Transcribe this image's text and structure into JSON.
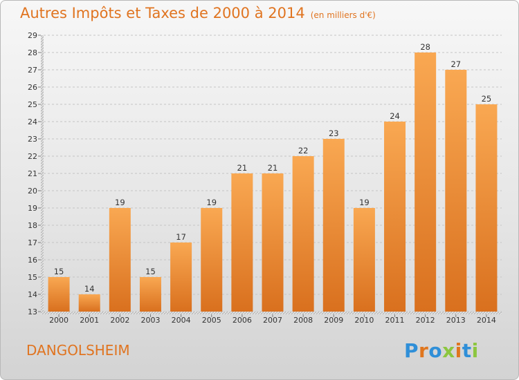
{
  "title": "Autres Impôts et Taxes de 2000 à 2014",
  "unit_note": "(en milliers d'€)",
  "commune": "DANGOLSHEIM",
  "logo": "Proxiti",
  "colors": {
    "accent": "#e07420",
    "bar_top": "#f9a852",
    "bar_bottom": "#d9701e",
    "logo_letters": [
      "#2f8fd8",
      "#e0761e",
      "#2f8fd8",
      "#8cc63f",
      "#e0761e",
      "#2f8fd8",
      "#8cc63f"
    ]
  },
  "chart_data": {
    "type": "bar",
    "categories": [
      "2000",
      "2001",
      "2002",
      "2003",
      "2004",
      "2005",
      "2006",
      "2007",
      "2008",
      "2009",
      "2010",
      "2011",
      "2012",
      "2013",
      "2014"
    ],
    "values": [
      15,
      14,
      19,
      15,
      17,
      19,
      21,
      21,
      22,
      23,
      19,
      24,
      28,
      27,
      25
    ],
    "ylim": [
      13,
      29
    ],
    "yticks": [
      13,
      14,
      15,
      16,
      17,
      18,
      19,
      20,
      21,
      22,
      23,
      24,
      25,
      26,
      27,
      28,
      29
    ],
    "grid": true,
    "xlabel": "",
    "ylabel": "",
    "data_labels": true
  }
}
